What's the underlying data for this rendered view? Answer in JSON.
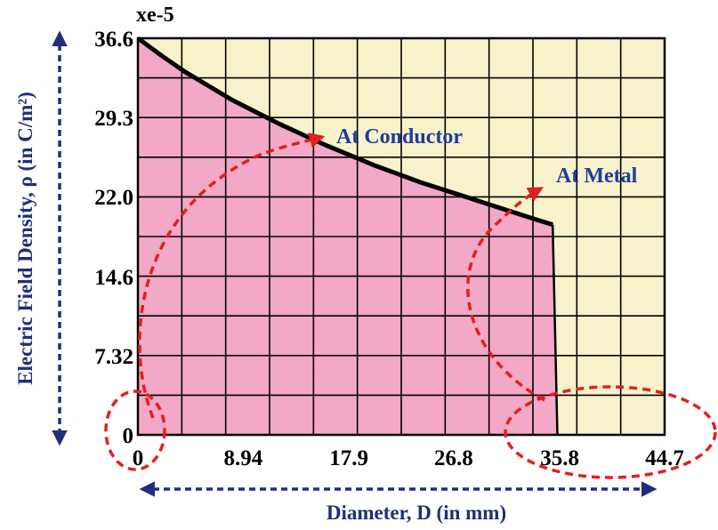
{
  "chart_data": {
    "type": "area",
    "title": "",
    "xlabel": "Diameter, D (in mm)",
    "ylabel": "Electric Field Density, ρ (in C/m²)",
    "y_multiplier": "xe-5",
    "xlim": [
      0,
      44.7
    ],
    "ylim": [
      0,
      36.6
    ],
    "x_ticks": [
      0,
      8.94,
      17.9,
      26.8,
      35.8,
      44.7
    ],
    "x_tick_labels": [
      "0",
      "8.94",
      "17.9",
      "26.8",
      "35.8",
      "44.7"
    ],
    "y_ticks": [
      0,
      7.32,
      14.6,
      22.0,
      29.3,
      36.6
    ],
    "y_tick_labels": [
      "0",
      "7.32",
      "14.6",
      "22.0",
      "29.3",
      "36.6"
    ],
    "grid": true,
    "series": [
      {
        "name": "Electric field density",
        "x": [
          0,
          2,
          4,
          6,
          8,
          10,
          12,
          14,
          16,
          18,
          20,
          22,
          24,
          26,
          28,
          30,
          32,
          34,
          35.2
        ],
        "y": [
          36.6,
          35.0,
          33.5,
          32.2,
          30.9,
          29.8,
          28.7,
          27.7,
          26.7,
          25.8,
          24.9,
          24.1,
          23.3,
          22.6,
          21.9,
          21.2,
          20.5,
          19.8,
          19.4
        ]
      }
    ],
    "drop_to_zero_x": 35.6,
    "annotations": [
      {
        "text": "At Conductor"
      },
      {
        "text": "At Metal"
      }
    ]
  },
  "colors": {
    "filled_area": "#f2a8c6",
    "background": "#f8f2cc",
    "curve": "#000000",
    "annotation": "#1f3c9a",
    "dashed_arrow": "#e02020",
    "axis_label": "#1f2f7a"
  }
}
